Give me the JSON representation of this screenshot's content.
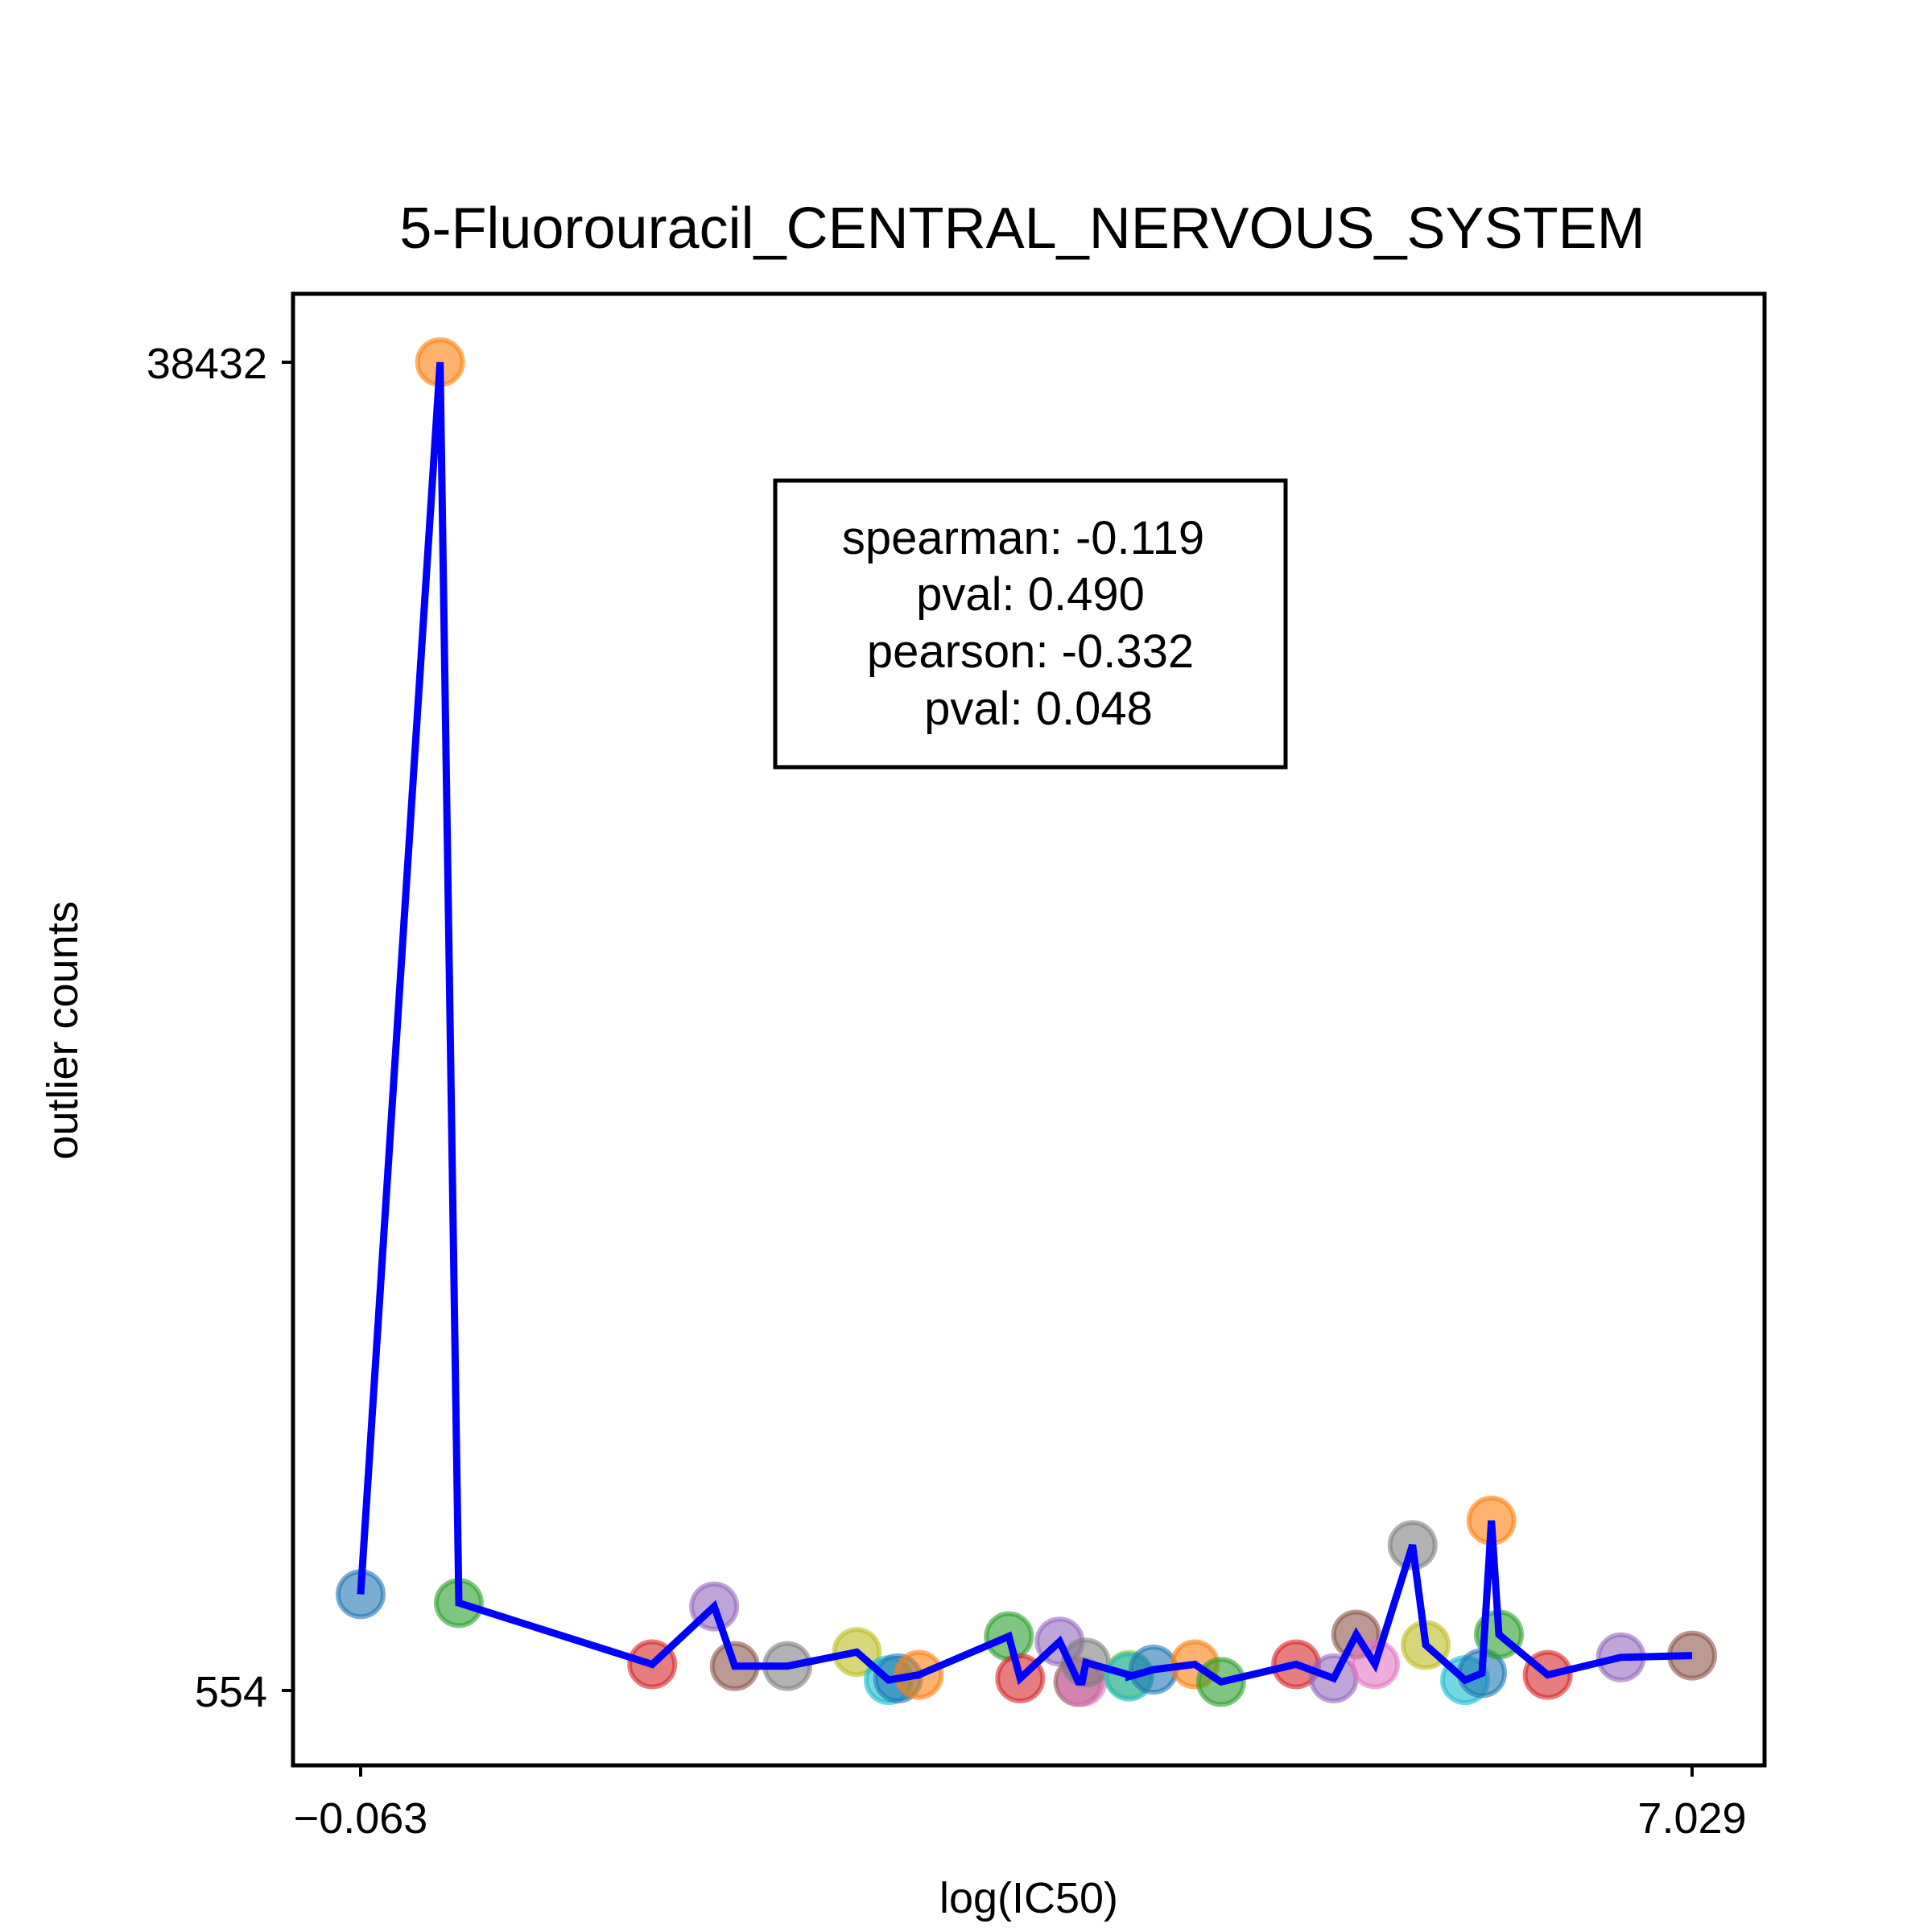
{
  "chart_data": {
    "type": "scatter",
    "title": "5-Fluorouracil_CENTRAL_NERVOUS_SYSTEM",
    "xlabel": "log(IC50)",
    "ylabel": "outlier counts",
    "xlim": [
      -0.063,
      7.029
    ],
    "ylim": [
      554,
      38432
    ],
    "x_ticks": [
      "−0.063",
      "7.029"
    ],
    "y_ticks": [
      "38432",
      "554"
    ],
    "grid": false,
    "legend": "none",
    "line_color": "#0000ff",
    "points": [
      {
        "x": -0.063,
        "y": 3300,
        "color": "#1f77b4"
      },
      {
        "x": 0.36,
        "y": 38432,
        "color": "#ff7f0e"
      },
      {
        "x": 0.46,
        "y": 3050,
        "color": "#2ca02c"
      },
      {
        "x": 1.49,
        "y": 1300,
        "color": "#d62728"
      },
      {
        "x": 1.82,
        "y": 2950,
        "color": "#9467bd"
      },
      {
        "x": 1.93,
        "y": 1250,
        "color": "#8c564b"
      },
      {
        "x": 2.21,
        "y": 1250,
        "color": "#7f7f7f"
      },
      {
        "x": 2.58,
        "y": 1650,
        "color": "#bcbd22"
      },
      {
        "x": 2.75,
        "y": 850,
        "color": "#17becf"
      },
      {
        "x": 2.8,
        "y": 900,
        "color": "#1f77b4"
      },
      {
        "x": 2.91,
        "y": 1000,
        "color": "#ff7f0e"
      },
      {
        "x": 3.39,
        "y": 2100,
        "color": "#2ca02c"
      },
      {
        "x": 3.45,
        "y": 900,
        "color": "#d62728"
      },
      {
        "x": 3.66,
        "y": 1950,
        "color": "#9467bd"
      },
      {
        "x": 3.76,
        "y": 800,
        "color": "#8c564b"
      },
      {
        "x": 3.78,
        "y": 800,
        "color": "#e377c2"
      },
      {
        "x": 3.8,
        "y": 1350,
        "color": "#7f7f7f"
      },
      {
        "x": 4.03,
        "y": 1000,
        "color": "#bcbd22"
      },
      {
        "x": 4.03,
        "y": 950,
        "color": "#17becf"
      },
      {
        "x": 4.16,
        "y": 1150,
        "color": "#1f77b4"
      },
      {
        "x": 4.38,
        "y": 1300,
        "color": "#ff7f0e"
      },
      {
        "x": 4.52,
        "y": 800,
        "color": "#2ca02c"
      },
      {
        "x": 4.92,
        "y": 1300,
        "color": "#d62728"
      },
      {
        "x": 5.12,
        "y": 900,
        "color": "#9467bd"
      },
      {
        "x": 5.24,
        "y": 2150,
        "color": "#8c564b"
      },
      {
        "x": 5.34,
        "y": 1300,
        "color": "#e377c2"
      },
      {
        "x": 5.54,
        "y": 4700,
        "color": "#7f7f7f"
      },
      {
        "x": 5.61,
        "y": 1850,
        "color": "#bcbd22"
      },
      {
        "x": 5.82,
        "y": 850,
        "color": "#17becf"
      },
      {
        "x": 5.91,
        "y": 1050,
        "color": "#1f77b4"
      },
      {
        "x": 5.96,
        "y": 5400,
        "color": "#ff7f0e"
      },
      {
        "x": 6.0,
        "y": 2150,
        "color": "#2ca02c"
      },
      {
        "x": 6.26,
        "y": 1000,
        "color": "#d62728"
      },
      {
        "x": 6.65,
        "y": 1500,
        "color": "#9467bd"
      },
      {
        "x": 7.029,
        "y": 1550,
        "color": "#8c564b"
      }
    ],
    "annotation": {
      "lines": [
        "spearman: -0.119",
        "pval: 0.490",
        "pearson: -0.332",
        "pval: 0.048"
      ]
    }
  }
}
